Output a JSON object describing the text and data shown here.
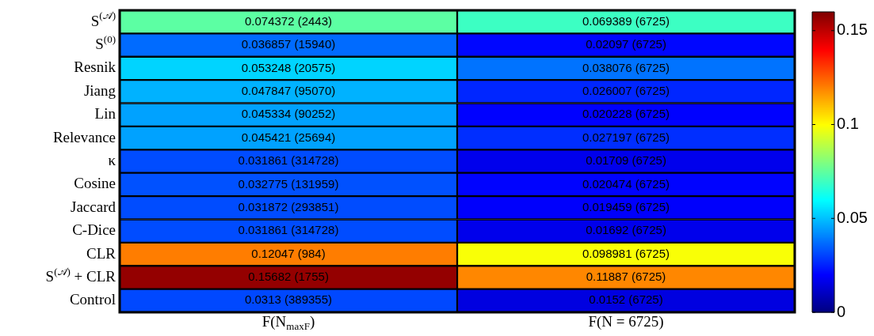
{
  "chart_data": {
    "type": "heatmap",
    "categories": [
      "F(N$_{maxF}$)",
      "F(N = 6725)"
    ],
    "y_categories": [
      "S$^{(𝒜)}$",
      "S$^{(0)}$",
      "Resnik",
      "Jiang",
      "Lin",
      "Relevance",
      "κ",
      "Cosine",
      "Jaccard",
      "C-Dice",
      "CLR",
      "S$^{(𝒜)}$ + CLR",
      "Control"
    ],
    "cells": [
      [
        0.074372,
        0.069389
      ],
      [
        0.036857,
        0.02097
      ],
      [
        0.053248,
        0.038076
      ],
      [
        0.047847,
        0.026007
      ],
      [
        0.045334,
        0.020228
      ],
      [
        0.045421,
        0.027197
      ],
      [
        0.031861,
        0.01709
      ],
      [
        0.032775,
        0.020474
      ],
      [
        0.031872,
        0.019459
      ],
      [
        0.031861,
        0.01692
      ],
      [
        0.12047,
        0.098981
      ],
      [
        0.15682,
        0.11887
      ],
      [
        0.0313,
        0.0152
      ]
    ],
    "cell_labels": [
      [
        "0.074372 (2443)",
        "0.069389 (6725)"
      ],
      [
        "0.036857 (15940)",
        "0.02097 (6725)"
      ],
      [
        "0.053248 (20575)",
        "0.038076 (6725)"
      ],
      [
        "0.047847 (95070)",
        "0.026007 (6725)"
      ],
      [
        "0.045334 (90252)",
        "0.020228 (6725)"
      ],
      [
        "0.045421 (25694)",
        "0.027197 (6725)"
      ],
      [
        "0.031861 (314728)",
        "0.01709 (6725)"
      ],
      [
        "0.032775 (131959)",
        "0.020474 (6725)"
      ],
      [
        "0.031872 (293851)",
        "0.019459 (6725)"
      ],
      [
        "0.031861 (314728)",
        "0.01692 (6725)"
      ],
      [
        "0.12047 (984)",
        "0.098981 (6725)"
      ],
      [
        "0.15682 (1755)",
        "0.11887 (6725)"
      ],
      [
        "0.0313 (389355)",
        "0.0152 (6725)"
      ]
    ],
    "clim": [
      0,
      0.16
    ],
    "cticks": [
      0,
      0.05,
      0.1,
      0.15
    ]
  }
}
